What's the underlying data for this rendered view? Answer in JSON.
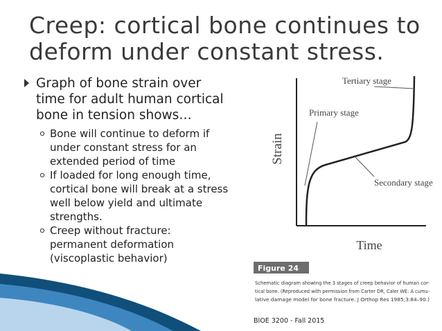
{
  "slide": {
    "title": [
      "Creep: cortical bone continues to",
      "deform under constant stress."
    ],
    "bullet": [
      "Graph of bone strain over",
      "time for adult human cortical",
      "bone in tension shows…"
    ],
    "sub_bullets": [
      [
        "Bone will continue to deform if",
        "under constant stress for an",
        "extended period of time"
      ],
      [
        "If loaded for long enough time,",
        "cortical bone will break at a stress",
        "well below yield and ultimate",
        "strengths."
      ],
      [
        "Creep without fracture:",
        "permanent deformation",
        "(viscoplastic behavior)"
      ]
    ],
    "figure": {
      "y_label": "Strain",
      "x_label": "Time",
      "labels": [
        "Tertiary stage",
        "Primary stage",
        "Secondary stage"
      ],
      "caption_title": "Figure 24",
      "caption": [
        "Schematic diagram showing the 3 stages of creep behavior of human cor-",
        "tical bone. (Reproduced with permission from Carter DR, Caler WE: A cumu-",
        "lative damage model for bone fracture. J Orthop Res 1985;3:84–90.)"
      ]
    },
    "footer": "BIOE 3200 - Fall 2015"
  }
}
